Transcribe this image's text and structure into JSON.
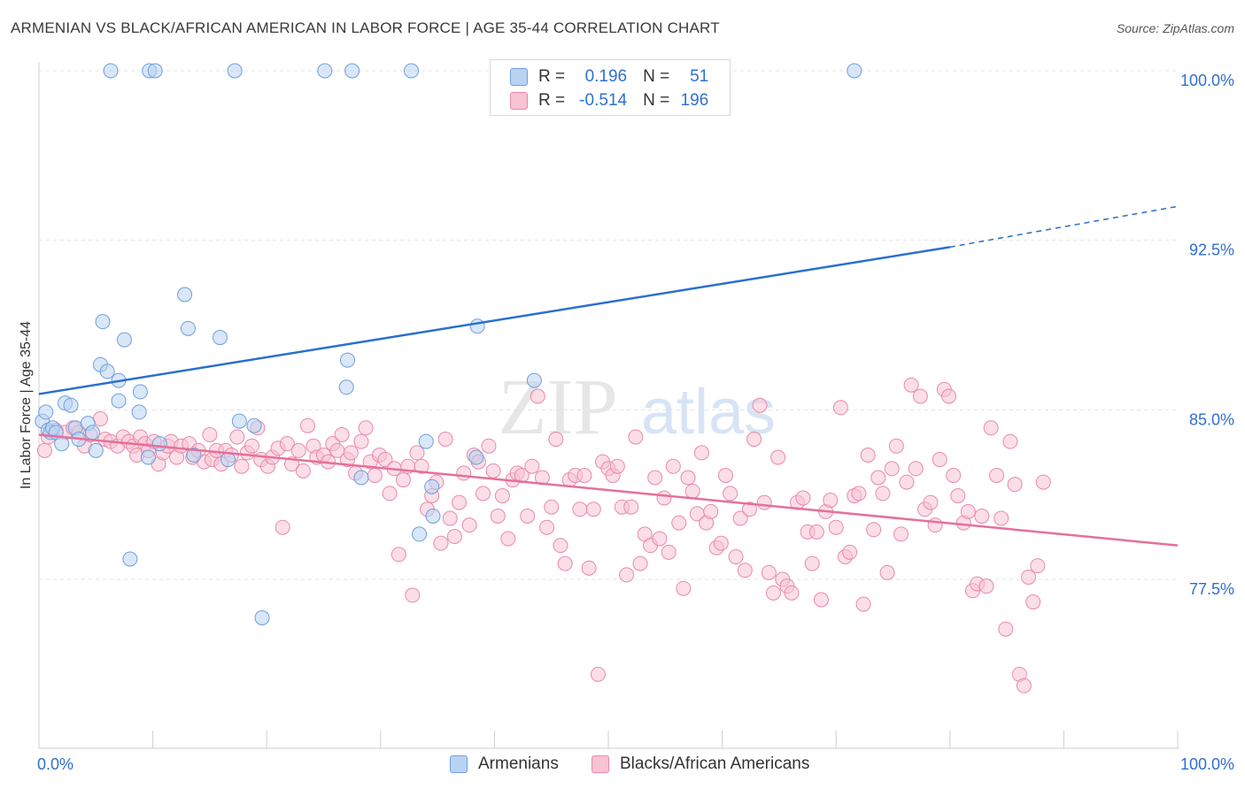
{
  "header": {
    "title": "ARMENIAN VS BLACK/AFRICAN AMERICAN IN LABOR FORCE | AGE 35-44 CORRELATION CHART",
    "source": "Source: ZipAtlas.com"
  },
  "watermark": {
    "zip": "ZIP",
    "atlas": "atlas"
  },
  "legend_top": {
    "r_label": "R =",
    "n_label": "N =",
    "rows": [
      {
        "r": "0.196",
        "n": "51"
      },
      {
        "r": "-0.514",
        "n": "196"
      }
    ]
  },
  "colors": {
    "armenians_fill": "#b9d3f3",
    "armenians_stroke": "#6f9fdc",
    "armenians_line": "#2a6fd0",
    "blacks_fill": "#f8c3d3",
    "blacks_stroke": "#e98aa8",
    "blacks_line": "#e5709a",
    "tick_label": "#2f6fd0",
    "grid": "#e3e3e3"
  },
  "chart_data": {
    "type": "scatter",
    "title": "ARMENIAN VS BLACK/AFRICAN AMERICAN IN LABOR FORCE | AGE 35-44 CORRELATION CHART",
    "xlabel": "",
    "ylabel": "In Labor Force | Age 35-44",
    "xlim": [
      0,
      100
    ],
    "ylim": [
      70.5,
      101
    ],
    "x_tick_labels": [
      "0.0%",
      "100.0%"
    ],
    "y_ticks": [
      77.5,
      85.0,
      92.5,
      100.0
    ],
    "y_tick_labels": [
      "77.5%",
      "85.0%",
      "92.5%",
      "100.0%"
    ],
    "grid": true,
    "legend_position": "top-center",
    "series": [
      {
        "name": "Armenians",
        "r": 0.196,
        "n": 51,
        "trend": {
          "x0": 0,
          "y0": 85.7,
          "x1": 80,
          "y1": 92.2,
          "dash_from": 80,
          "dash_to": 100,
          "y_end": 94.0
        },
        "points": [
          [
            0.3,
            84.5
          ],
          [
            0.6,
            84.9
          ],
          [
            0.8,
            84.1
          ],
          [
            1.0,
            84.0
          ],
          [
            1.2,
            84.2
          ],
          [
            1.5,
            84.0
          ],
          [
            2.0,
            83.5
          ],
          [
            2.3,
            85.3
          ],
          [
            2.8,
            85.2
          ],
          [
            3.2,
            84.2
          ],
          [
            3.5,
            83.7
          ],
          [
            4.3,
            84.4
          ],
          [
            4.7,
            84.0
          ],
          [
            5.0,
            83.2
          ],
          [
            5.4,
            87.0
          ],
          [
            5.6,
            88.9
          ],
          [
            6.0,
            86.7
          ],
          [
            7.0,
            86.3
          ],
          [
            7.0,
            85.4
          ],
          [
            7.5,
            88.1
          ],
          [
            8.0,
            78.4
          ],
          [
            8.8,
            84.9
          ],
          [
            8.9,
            85.8
          ],
          [
            9.6,
            82.9
          ],
          [
            10.6,
            83.5
          ],
          [
            12.8,
            90.1
          ],
          [
            13.1,
            88.6
          ],
          [
            13.6,
            83.0
          ],
          [
            15.9,
            88.2
          ],
          [
            16.6,
            82.8
          ],
          [
            17.6,
            84.5
          ],
          [
            18.9,
            84.3
          ],
          [
            19.6,
            75.8
          ],
          [
            27.1,
            87.2
          ],
          [
            27.0,
            86.0
          ],
          [
            28.3,
            82.0
          ],
          [
            33.4,
            79.5
          ],
          [
            34.0,
            83.6
          ],
          [
            34.5,
            81.6
          ],
          [
            34.6,
            80.3
          ],
          [
            38.4,
            82.9
          ],
          [
            43.5,
            86.3
          ],
          [
            38.5,
            88.7
          ],
          [
            6.3,
            100.0
          ],
          [
            9.7,
            100.0
          ],
          [
            10.2,
            100.0
          ],
          [
            17.2,
            100.0
          ],
          [
            25.1,
            100.0
          ],
          [
            27.5,
            100.0
          ],
          [
            32.7,
            100.0
          ],
          [
            71.6,
            100.0
          ]
        ]
      },
      {
        "name": "Blacks/African Americans",
        "r": -0.514,
        "n": 196,
        "trend": {
          "x0": 0,
          "y0": 83.9,
          "x1": 100,
          "y1": 79.0
        },
        "points": [
          [
            0.5,
            83.2
          ],
          [
            0.8,
            83.8
          ],
          [
            1.5,
            84.1
          ],
          [
            2.3,
            84.0
          ],
          [
            3.0,
            84.2
          ],
          [
            3.5,
            84.0
          ],
          [
            4.0,
            83.4
          ],
          [
            4.5,
            83.9
          ],
          [
            5.4,
            84.6
          ],
          [
            5.8,
            83.7
          ],
          [
            6.3,
            83.6
          ],
          [
            6.9,
            83.4
          ],
          [
            7.4,
            83.8
          ],
          [
            7.9,
            83.6
          ],
          [
            8.3,
            83.4
          ],
          [
            8.6,
            83.0
          ],
          [
            8.9,
            83.8
          ],
          [
            9.3,
            83.5
          ],
          [
            9.6,
            83.2
          ],
          [
            10.1,
            83.6
          ],
          [
            10.5,
            82.6
          ],
          [
            10.9,
            83.1
          ],
          [
            11.3,
            83.4
          ],
          [
            11.6,
            83.6
          ],
          [
            12.1,
            82.9
          ],
          [
            12.5,
            83.4
          ],
          [
            13.2,
            83.5
          ],
          [
            13.5,
            82.9
          ],
          [
            14.0,
            83.2
          ],
          [
            14.5,
            82.7
          ],
          [
            15.0,
            83.9
          ],
          [
            15.2,
            82.8
          ],
          [
            15.6,
            83.2
          ],
          [
            16.0,
            82.6
          ],
          [
            16.4,
            83.2
          ],
          [
            16.9,
            83.0
          ],
          [
            17.4,
            83.8
          ],
          [
            17.8,
            82.5
          ],
          [
            18.3,
            83.1
          ],
          [
            18.7,
            83.4
          ],
          [
            19.2,
            84.2
          ],
          [
            19.5,
            82.8
          ],
          [
            20.1,
            82.5
          ],
          [
            20.5,
            82.9
          ],
          [
            21.0,
            83.3
          ],
          [
            21.4,
            79.8
          ],
          [
            21.8,
            83.5
          ],
          [
            22.2,
            82.6
          ],
          [
            22.8,
            83.2
          ],
          [
            23.2,
            82.3
          ],
          [
            23.6,
            84.3
          ],
          [
            24.1,
            83.4
          ],
          [
            24.4,
            82.9
          ],
          [
            25.0,
            83.0
          ],
          [
            25.4,
            82.7
          ],
          [
            25.8,
            83.5
          ],
          [
            26.2,
            83.2
          ],
          [
            26.6,
            83.9
          ],
          [
            27.1,
            82.8
          ],
          [
            27.4,
            83.1
          ],
          [
            27.8,
            82.2
          ],
          [
            28.3,
            83.6
          ],
          [
            28.7,
            84.2
          ],
          [
            29.1,
            82.7
          ],
          [
            29.5,
            82.1
          ],
          [
            29.9,
            83.0
          ],
          [
            30.4,
            82.8
          ],
          [
            30.8,
            81.3
          ],
          [
            31.2,
            82.4
          ],
          [
            31.6,
            78.6
          ],
          [
            32.0,
            81.9
          ],
          [
            32.4,
            82.5
          ],
          [
            32.8,
            76.8
          ],
          [
            33.2,
            83.1
          ],
          [
            33.6,
            82.5
          ],
          [
            34.1,
            80.6
          ],
          [
            34.5,
            81.2
          ],
          [
            34.9,
            81.8
          ],
          [
            35.3,
            79.1
          ],
          [
            35.7,
            83.7
          ],
          [
            36.1,
            80.2
          ],
          [
            36.5,
            79.4
          ],
          [
            36.9,
            80.9
          ],
          [
            37.3,
            82.2
          ],
          [
            37.8,
            79.9
          ],
          [
            38.2,
            83.0
          ],
          [
            38.6,
            82.7
          ],
          [
            39.0,
            81.3
          ],
          [
            39.5,
            83.4
          ],
          [
            39.9,
            82.3
          ],
          [
            40.3,
            80.3
          ],
          [
            40.7,
            81.2
          ],
          [
            41.2,
            79.3
          ],
          [
            41.6,
            81.9
          ],
          [
            42.0,
            82.2
          ],
          [
            42.4,
            82.1
          ],
          [
            42.9,
            80.3
          ],
          [
            43.3,
            82.5
          ],
          [
            43.8,
            85.6
          ],
          [
            44.2,
            82.0
          ],
          [
            44.6,
            79.8
          ],
          [
            45.0,
            80.7
          ],
          [
            45.4,
            83.7
          ],
          [
            45.8,
            79.0
          ],
          [
            46.2,
            78.2
          ],
          [
            46.6,
            81.9
          ],
          [
            47.1,
            82.1
          ],
          [
            47.5,
            80.6
          ],
          [
            47.9,
            82.1
          ],
          [
            48.3,
            78.0
          ],
          [
            48.7,
            80.6
          ],
          [
            49.1,
            73.3
          ],
          [
            49.5,
            82.7
          ],
          [
            50.0,
            82.4
          ],
          [
            50.4,
            82.1
          ],
          [
            50.8,
            82.5
          ],
          [
            51.2,
            80.7
          ],
          [
            51.6,
            77.7
          ],
          [
            52.0,
            80.7
          ],
          [
            52.4,
            83.8
          ],
          [
            52.8,
            78.2
          ],
          [
            53.2,
            79.5
          ],
          [
            53.7,
            79.0
          ],
          [
            54.1,
            82.0
          ],
          [
            54.5,
            79.3
          ],
          [
            54.9,
            81.1
          ],
          [
            55.3,
            78.7
          ],
          [
            55.7,
            82.5
          ],
          [
            56.2,
            80.0
          ],
          [
            56.6,
            77.1
          ],
          [
            57.0,
            82.0
          ],
          [
            57.4,
            81.4
          ],
          [
            57.8,
            80.4
          ],
          [
            58.2,
            83.1
          ],
          [
            58.6,
            80.0
          ],
          [
            59.0,
            80.5
          ],
          [
            59.5,
            78.9
          ],
          [
            59.9,
            79.1
          ],
          [
            60.3,
            82.1
          ],
          [
            60.7,
            81.3
          ],
          [
            61.2,
            78.5
          ],
          [
            61.6,
            80.2
          ],
          [
            62.0,
            77.9
          ],
          [
            62.4,
            80.6
          ],
          [
            62.8,
            83.7
          ],
          [
            63.3,
            85.2
          ],
          [
            63.7,
            80.9
          ],
          [
            64.1,
            77.8
          ],
          [
            64.5,
            76.9
          ],
          [
            64.9,
            82.9
          ],
          [
            65.3,
            77.5
          ],
          [
            65.7,
            77.2
          ],
          [
            66.1,
            76.9
          ],
          [
            66.6,
            80.9
          ],
          [
            67.1,
            81.1
          ],
          [
            67.5,
            79.6
          ],
          [
            67.9,
            78.2
          ],
          [
            68.3,
            79.6
          ],
          [
            68.7,
            76.6
          ],
          [
            69.1,
            80.5
          ],
          [
            69.5,
            81.0
          ],
          [
            70.0,
            79.8
          ],
          [
            70.4,
            85.1
          ],
          [
            70.8,
            78.5
          ],
          [
            71.2,
            78.7
          ],
          [
            71.6,
            81.2
          ],
          [
            72.0,
            81.3
          ],
          [
            72.4,
            76.4
          ],
          [
            72.8,
            83.0
          ],
          [
            73.3,
            79.7
          ],
          [
            73.7,
            82.0
          ],
          [
            74.1,
            81.3
          ],
          [
            74.5,
            77.8
          ],
          [
            74.9,
            82.4
          ],
          [
            75.3,
            83.4
          ],
          [
            75.7,
            79.5
          ],
          [
            76.2,
            81.8
          ],
          [
            76.6,
            86.1
          ],
          [
            77.0,
            82.4
          ],
          [
            77.4,
            85.6
          ],
          [
            77.8,
            80.6
          ],
          [
            78.3,
            80.9
          ],
          [
            78.7,
            79.9
          ],
          [
            79.1,
            82.8
          ],
          [
            79.5,
            85.9
          ],
          [
            79.9,
            85.6
          ],
          [
            80.3,
            82.1
          ],
          [
            80.7,
            81.2
          ],
          [
            81.2,
            80.0
          ],
          [
            81.6,
            80.5
          ],
          [
            82.0,
            77.0
          ],
          [
            82.4,
            77.3
          ],
          [
            82.8,
            80.3
          ],
          [
            83.2,
            77.2
          ],
          [
            83.6,
            84.2
          ],
          [
            84.1,
            82.1
          ],
          [
            84.5,
            80.2
          ],
          [
            84.9,
            75.3
          ],
          [
            85.3,
            83.6
          ],
          [
            85.7,
            81.7
          ],
          [
            86.1,
            73.3
          ],
          [
            86.5,
            72.8
          ],
          [
            86.9,
            77.6
          ],
          [
            87.3,
            76.5
          ],
          [
            87.7,
            78.1
          ],
          [
            88.2,
            81.8
          ]
        ]
      }
    ]
  }
}
